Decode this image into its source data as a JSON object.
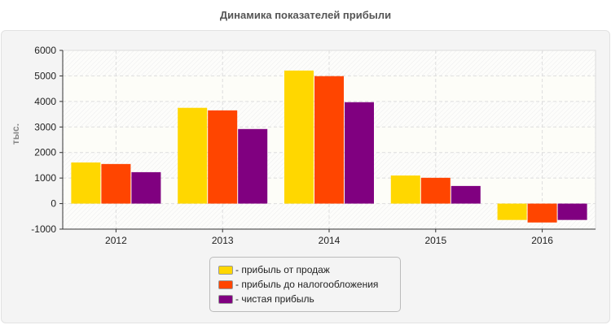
{
  "chart_data": {
    "type": "bar",
    "title": "Динамика показателей прибыли",
    "xlabel": "",
    "ylabel": "тыс.",
    "ylim": [
      -1000,
      6000
    ],
    "yticks": [
      "-1000",
      "0",
      "1000",
      "2000",
      "3000",
      "4000",
      "5000",
      "6000"
    ],
    "categories": [
      "2012",
      "2013",
      "2014",
      "2015",
      "2016"
    ],
    "grid": true,
    "legend_position": "bottom",
    "series": [
      {
        "name": "- прибыль от продаж",
        "color": "#FFD700",
        "values": [
          1610,
          3750,
          5210,
          1100,
          -640
        ]
      },
      {
        "name": "- прибыль до налогообложения",
        "color": "#FF4500",
        "values": [
          1550,
          3650,
          4990,
          1010,
          -740
        ]
      },
      {
        "name": "- чистая прибыль",
        "color": "#800080",
        "values": [
          1230,
          2920,
          3970,
          690,
          -640
        ]
      }
    ]
  }
}
